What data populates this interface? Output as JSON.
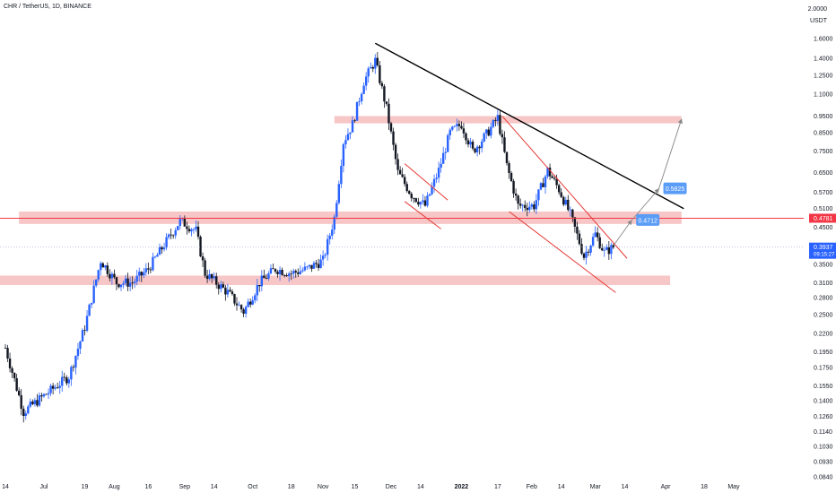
{
  "header": {
    "symbol_line": "CHR / TetherUS, 1D, BINANCE"
  },
  "price_axis": {
    "currency": "USDT",
    "top_label": "2.0000",
    "ticks": [
      "1.6000",
      "1.4000",
      "1.2500",
      "1.1000",
      "0.9500",
      "0.8500",
      "0.7500",
      "0.6500",
      "0.5700",
      "0.5100",
      "0.4500",
      "0.3500",
      "0.3100",
      "0.2800",
      "0.2500",
      "0.2200",
      "0.1950",
      "0.1750",
      "0.1550",
      "0.1400",
      "0.1260",
      "0.1140",
      "0.1030",
      "0.0930",
      "0.0840"
    ],
    "marker_red": {
      "label": "0.4781",
      "value": 0.4781,
      "color": "#f23645"
    },
    "marker_blue": {
      "label": "0.3937",
      "sublabel": "09:15:27",
      "value": 0.3937,
      "color": "#2962ff"
    }
  },
  "time_axis": {
    "labels": [
      "14",
      "Jul",
      "19",
      "Aug",
      "16",
      "Sep",
      "14",
      "Oct",
      "18",
      "Nov",
      "15",
      "Dec",
      "14",
      "2022",
      "17",
      "Feb",
      "14",
      "Mar",
      "14",
      "Apr",
      "18",
      "May"
    ]
  },
  "annotations": {
    "target1": {
      "label": "0.4712",
      "value": 0.4712
    },
    "target2": {
      "label": "0.5825",
      "value": 0.5825
    }
  },
  "colors": {
    "up": "#2962ff",
    "down": "#131722",
    "zone": "#f4b3b3",
    "resistance_line": "#f23645",
    "trendline_black": "#000000",
    "channel_red": "#e53935",
    "label_bg": "#5b9cf6"
  },
  "chart_data": {
    "type": "candlestick",
    "symbol": "CHR / TetherUS",
    "interval": "1D",
    "exchange": "BINANCE",
    "y_scale": "log",
    "ylim": [
      0.084,
      2.0
    ],
    "series": [
      {
        "x": "2021-06-14",
        "close": 0.2
      },
      {
        "x": "2021-06-22",
        "close": 0.13
      },
      {
        "x": "2021-07-01",
        "close": 0.145
      },
      {
        "x": "2021-07-12",
        "close": 0.165
      },
      {
        "x": "2021-07-19",
        "close": 0.23
      },
      {
        "x": "2021-07-26",
        "close": 0.36
      },
      {
        "x": "2021-08-02",
        "close": 0.31
      },
      {
        "x": "2021-08-09",
        "close": 0.31
      },
      {
        "x": "2021-08-16",
        "close": 0.34
      },
      {
        "x": "2021-08-23",
        "close": 0.4
      },
      {
        "x": "2021-08-30",
        "close": 0.47
      },
      {
        "x": "2021-09-06",
        "close": 0.44
      },
      {
        "x": "2021-09-10",
        "close": 0.33
      },
      {
        "x": "2021-09-20",
        "close": 0.29
      },
      {
        "x": "2021-09-27",
        "close": 0.255
      },
      {
        "x": "2021-10-04",
        "close": 0.31
      },
      {
        "x": "2021-10-11",
        "close": 0.34
      },
      {
        "x": "2021-10-18",
        "close": 0.33
      },
      {
        "x": "2021-10-25",
        "close": 0.34
      },
      {
        "x": "2021-11-01",
        "close": 0.36
      },
      {
        "x": "2021-11-06",
        "close": 0.48
      },
      {
        "x": "2021-11-10",
        "close": 0.8
      },
      {
        "x": "2021-11-14",
        "close": 0.9
      },
      {
        "x": "2021-11-19",
        "close": 1.2
      },
      {
        "x": "2021-11-24",
        "close": 1.38
      },
      {
        "x": "2021-11-29",
        "close": 1.0
      },
      {
        "x": "2021-12-04",
        "close": 0.65
      },
      {
        "x": "2021-12-10",
        "close": 0.56
      },
      {
        "x": "2021-12-16",
        "close": 0.52
      },
      {
        "x": "2021-12-22",
        "close": 0.66
      },
      {
        "x": "2021-12-27",
        "close": 0.85
      },
      {
        "x": "2022-01-01",
        "close": 0.9
      },
      {
        "x": "2022-01-06",
        "close": 0.75
      },
      {
        "x": "2022-01-12",
        "close": 0.84
      },
      {
        "x": "2022-01-17",
        "close": 0.94
      },
      {
        "x": "2022-01-21",
        "close": 0.68
      },
      {
        "x": "2022-01-26",
        "close": 0.52
      },
      {
        "x": "2022-02-02",
        "close": 0.52
      },
      {
        "x": "2022-02-08",
        "close": 0.66
      },
      {
        "x": "2022-02-13",
        "close": 0.58
      },
      {
        "x": "2022-02-18",
        "close": 0.49
      },
      {
        "x": "2022-02-24",
        "close": 0.37
      },
      {
        "x": "2022-03-01",
        "close": 0.43
      },
      {
        "x": "2022-03-05",
        "close": 0.38
      },
      {
        "x": "2022-03-09",
        "close": 0.3937
      }
    ],
    "projections": [
      {
        "from": "2022-03-09",
        "to": "2022-03-17",
        "target": 0.4712
      },
      {
        "from": "2022-03-17",
        "to": "2022-03-29",
        "target": 0.5825
      },
      {
        "from": "2022-03-29",
        "to": "2022-04-08",
        "target": 0.93
      }
    ]
  }
}
